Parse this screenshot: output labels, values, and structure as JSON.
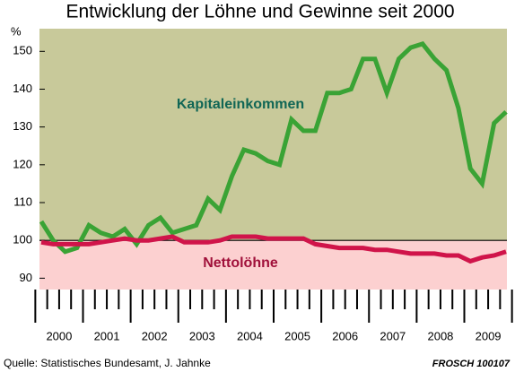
{
  "chart_data": {
    "type": "line",
    "title": "Entwicklung der Löhne und Gewinne seit 2000",
    "y_unit": "%",
    "x_labels": [
      "2000",
      "2001",
      "2002",
      "2003",
      "2004",
      "2005",
      "2006",
      "2007",
      "2008",
      "2009"
    ],
    "ylim": [
      87,
      156
    ],
    "yticks": [
      90,
      100,
      110,
      120,
      130,
      140,
      150
    ],
    "series": [
      {
        "name": "Kapitaleinkommen",
        "color": "#3aa335",
        "values": [
          105,
          100,
          97,
          98,
          104,
          102,
          101,
          103,
          99,
          104,
          106,
          102,
          103,
          104,
          111,
          108,
          117,
          124,
          123,
          121,
          120,
          132,
          129,
          129,
          139,
          139,
          140,
          148,
          148,
          139,
          148,
          151,
          152,
          148,
          145,
          135,
          119,
          115,
          131,
          134
        ]
      },
      {
        "name": "Nettolöhne",
        "color": "#d0144a",
        "values": [
          99.5,
          99,
          99,
          99,
          99,
          99.5,
          100,
          100.5,
          100,
          100,
          100.5,
          101,
          99.5,
          99.5,
          99.5,
          100,
          101,
          101,
          101,
          100.5,
          100.5,
          100.5,
          100.5,
          99,
          98.5,
          98,
          98,
          98,
          97.5,
          97.5,
          97,
          96.5,
          96.5,
          96.5,
          96,
          96,
          94.5,
          95.5,
          96,
          97
        ]
      }
    ],
    "source": "Quelle: Statistisches Bundesamt, J. Jahnke",
    "credit": "FROSCH 100107"
  }
}
